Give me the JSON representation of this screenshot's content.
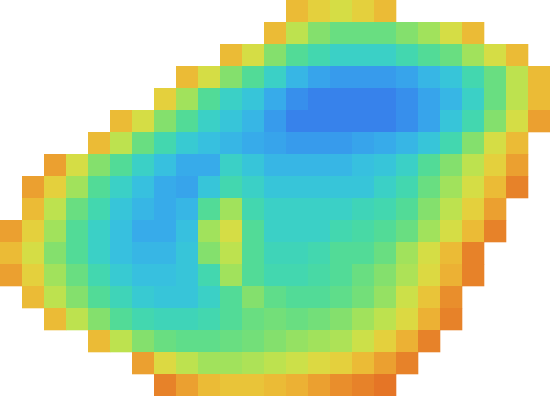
{
  "chart_data": {
    "type": "heatmap",
    "zlim": [
      0,
      100
    ],
    "tick_labels": false,
    "values": [
      [
        null,
        null,
        null,
        null,
        null,
        null,
        null,
        null,
        null,
        null,
        null,
        null,
        null,
        80,
        75,
        70,
        75,
        80,
        null,
        null,
        null,
        null,
        null,
        null,
        null
      ],
      [
        null,
        null,
        null,
        null,
        null,
        null,
        null,
        null,
        null,
        null,
        null,
        null,
        80,
        65,
        55,
        50,
        50,
        50,
        55,
        60,
        70,
        80,
        null,
        null,
        null
      ],
      [
        null,
        null,
        null,
        null,
        null,
        null,
        null,
        null,
        null,
        null,
        80,
        70,
        55,
        45,
        40,
        35,
        35,
        35,
        40,
        45,
        50,
        60,
        70,
        80,
        null
      ],
      [
        null,
        null,
        null,
        null,
        null,
        null,
        null,
        null,
        80,
        70,
        55,
        45,
        35,
        25,
        20,
        18,
        18,
        18,
        20,
        25,
        30,
        40,
        50,
        65,
        80
      ],
      [
        null,
        null,
        null,
        null,
        null,
        null,
        null,
        75,
        60,
        45,
        35,
        30,
        22,
        15,
        12,
        12,
        12,
        12,
        15,
        20,
        25,
        35,
        50,
        65,
        80
      ],
      [
        null,
        null,
        null,
        null,
        null,
        80,
        70,
        55,
        45,
        35,
        30,
        25,
        18,
        12,
        12,
        12,
        12,
        12,
        15,
        20,
        30,
        40,
        55,
        70,
        85
      ],
      [
        null,
        null,
        null,
        null,
        80,
        65,
        50,
        40,
        32,
        28,
        25,
        22,
        20,
        18,
        18,
        18,
        20,
        22,
        25,
        30,
        40,
        55,
        70,
        80,
        null
      ],
      [
        null,
        null,
        85,
        70,
        55,
        45,
        35,
        28,
        22,
        22,
        35,
        30,
        25,
        25,
        25,
        25,
        28,
        30,
        35,
        45,
        55,
        65,
        75,
        85,
        null
      ],
      [
        null,
        85,
        75,
        60,
        45,
        35,
        28,
        22,
        20,
        30,
        40,
        35,
        30,
        30,
        30,
        30,
        30,
        35,
        40,
        50,
        60,
        70,
        80,
        90,
        null
      ],
      [
        null,
        80,
        65,
        50,
        40,
        30,
        25,
        22,
        25,
        45,
        60,
        40,
        35,
        35,
        35,
        35,
        38,
        40,
        45,
        55,
        65,
        75,
        85,
        null,
        null
      ],
      [
        85,
        75,
        60,
        45,
        35,
        28,
        22,
        22,
        28,
        60,
        70,
        45,
        35,
        35,
        35,
        40,
        42,
        45,
        50,
        60,
        70,
        80,
        90,
        null,
        null
      ],
      [
        80,
        70,
        55,
        45,
        35,
        28,
        25,
        25,
        30,
        55,
        65,
        45,
        38,
        38,
        40,
        45,
        45,
        50,
        60,
        70,
        80,
        90,
        null,
        null,
        null
      ],
      [
        85,
        75,
        60,
        50,
        40,
        32,
        28,
        28,
        30,
        40,
        60,
        45,
        40,
        40,
        42,
        45,
        50,
        55,
        62,
        72,
        82,
        90,
        null,
        null,
        null
      ],
      [
        null,
        80,
        65,
        55,
        45,
        38,
        32,
        30,
        30,
        35,
        45,
        55,
        48,
        45,
        45,
        48,
        52,
        58,
        68,
        78,
        88,
        null,
        null,
        null,
        null
      ],
      [
        null,
        null,
        80,
        65,
        55,
        45,
        40,
        38,
        38,
        40,
        45,
        50,
        52,
        50,
        52,
        55,
        60,
        65,
        72,
        82,
        90,
        null,
        null,
        null,
        null
      ],
      [
        null,
        null,
        null,
        null,
        80,
        65,
        55,
        50,
        48,
        48,
        50,
        52,
        55,
        58,
        60,
        62,
        68,
        75,
        82,
        90,
        null,
        null,
        null,
        null,
        null
      ],
      [
        null,
        null,
        null,
        null,
        null,
        null,
        85,
        72,
        65,
        60,
        60,
        62,
        65,
        68,
        72,
        75,
        80,
        85,
        90,
        null,
        null,
        null,
        null,
        null,
        null
      ],
      [
        null,
        null,
        null,
        null,
        null,
        null,
        null,
        90,
        85,
        80,
        78,
        78,
        80,
        82,
        85,
        88,
        90,
        92,
        null,
        null,
        null,
        null,
        null,
        null,
        null
      ]
    ]
  }
}
